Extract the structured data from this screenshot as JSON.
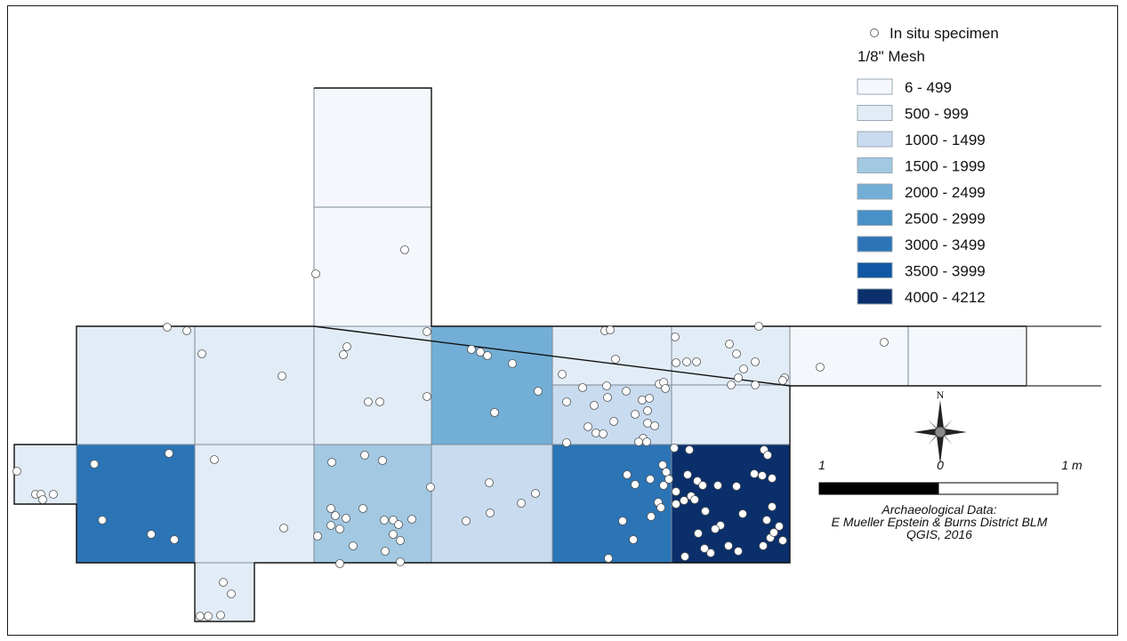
{
  "map": {
    "legend": {
      "point_label": "In situ specimen",
      "layer_title": "1/8\" Mesh",
      "classes": [
        {
          "label": "6 - 499",
          "color": "#f4f8fd"
        },
        {
          "label": "500 - 999",
          "color": "#e2ecf7"
        },
        {
          "label": "1000 - 1499",
          "color": "#c8dbef"
        },
        {
          "label": "1500 - 1999",
          "color": "#a2c8e2"
        },
        {
          "label": "2000 - 2499",
          "color": "#72aed6"
        },
        {
          "label": "2500 - 2999",
          "color": "#4891c8"
        },
        {
          "label": "3000 - 3499",
          "color": "#2b74b6"
        },
        {
          "label": "3500 - 3999",
          "color": "#1058a4"
        },
        {
          "label": "4000 - 4212",
          "color": "#0a2f6b"
        }
      ]
    },
    "north_label": "N",
    "scale": {
      "left": "1",
      "mid": "0",
      "right": "1 m"
    },
    "credits": [
      "Archaeological Data:",
      "E Mueller Epstein & Burns District BLM",
      "QGIS, 2016"
    ]
  }
}
